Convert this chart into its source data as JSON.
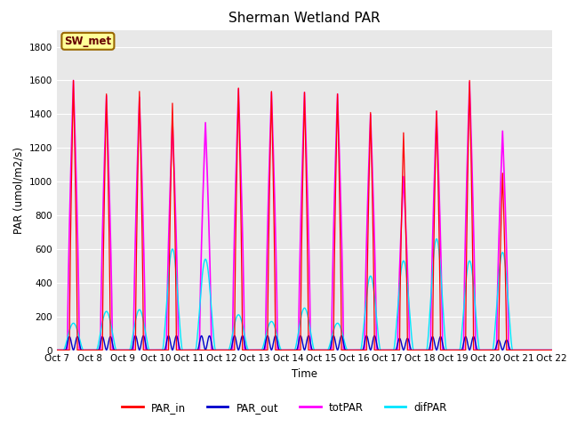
{
  "title": "Sherman Wetland PAR",
  "ylabel": "PAR (umol/m2/s)",
  "xlabel": "Time",
  "ylim": [
    0,
    1900
  ],
  "yticks": [
    0,
    200,
    400,
    600,
    800,
    1000,
    1200,
    1400,
    1600,
    1800
  ],
  "n_days": 15,
  "colors": {
    "PAR_in": "#ff0000",
    "PAR_out": "#0000cc",
    "totPAR": "#ff00ff",
    "difPAR": "#00e5ff"
  },
  "peaks_PAR_in": [
    1600,
    1520,
    1535,
    1465,
    0,
    1555,
    1535,
    1530,
    1520,
    1410,
    1290,
    1420,
    1600,
    1050,
    0
  ],
  "peaks_totPAR": [
    1600,
    1510,
    1500,
    1360,
    1350,
    1550,
    1530,
    1530,
    1520,
    1400,
    1030,
    1415,
    1590,
    1300,
    0
  ],
  "peaks_PAR_out": [
    80,
    80,
    85,
    85,
    85,
    85,
    85,
    85,
    85,
    85,
    70,
    80,
    80,
    60,
    0
  ],
  "peaks_difPAR": [
    160,
    230,
    240,
    600,
    540,
    210,
    170,
    250,
    160,
    440,
    530,
    660,
    530,
    580,
    0
  ],
  "background_color": "#e8e8e8",
  "figure_bg": "#ffffff",
  "grid_color": "#ffffff",
  "sw_met_box": {
    "text": "SW_met",
    "bg": "#ffff99",
    "border": "#996600",
    "text_color": "#660000"
  },
  "xtick_labels": [
    "Oct 7",
    "Oct 8",
    "Oct 9",
    "Oct 10",
    "Oct 11",
    "Oct 12",
    "Oct 13",
    "Oct 14",
    "Oct 15",
    "Oct 16",
    "Oct 17",
    "Oct 18",
    "Oct 19",
    "Oct 20",
    "Oct 21",
    "Oct 22"
  ],
  "points_per_day": 200
}
